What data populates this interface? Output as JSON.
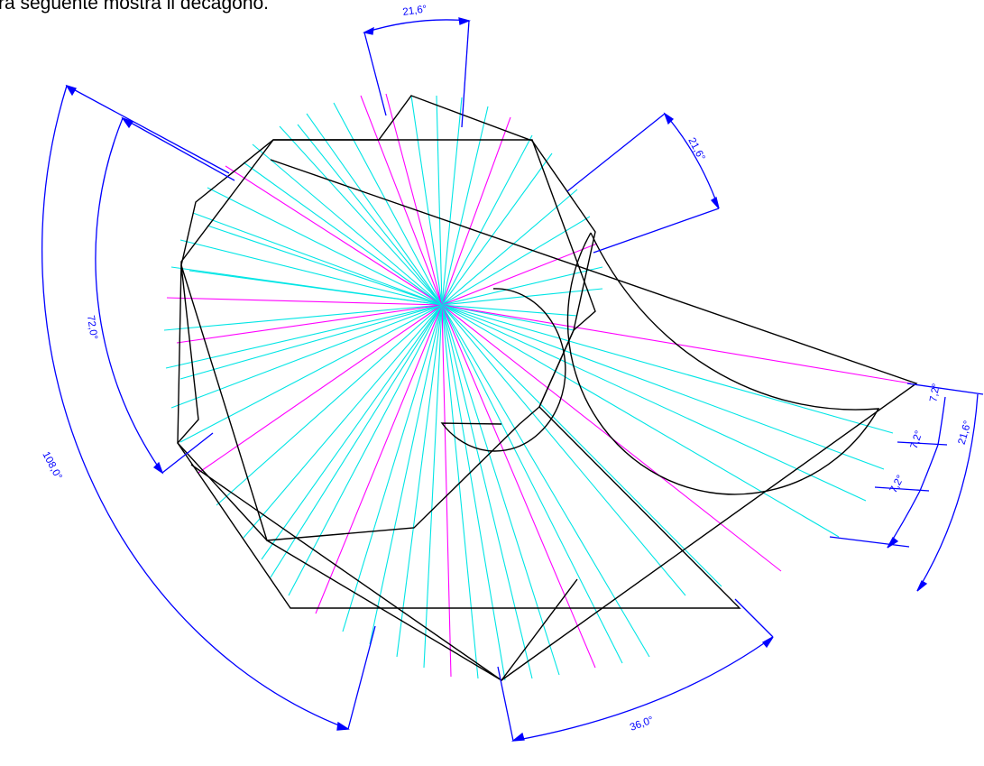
{
  "caption": "ra seguente mostra il decagono.",
  "dimensions": {
    "top": "21,6°",
    "upper_right": "21,6°",
    "left_inner": "72,0°",
    "left_outer": "108,0°",
    "bottom": "36,0°",
    "right_a": "7,2°",
    "right_b": "7,2°",
    "right_c": "7,2°",
    "right_total": "21,6°"
  },
  "colors": {
    "outline": "#000000",
    "construction_cyan": "#00e5e5",
    "construction_magenta": "#ff00ff",
    "dimension": "#0000ff"
  }
}
